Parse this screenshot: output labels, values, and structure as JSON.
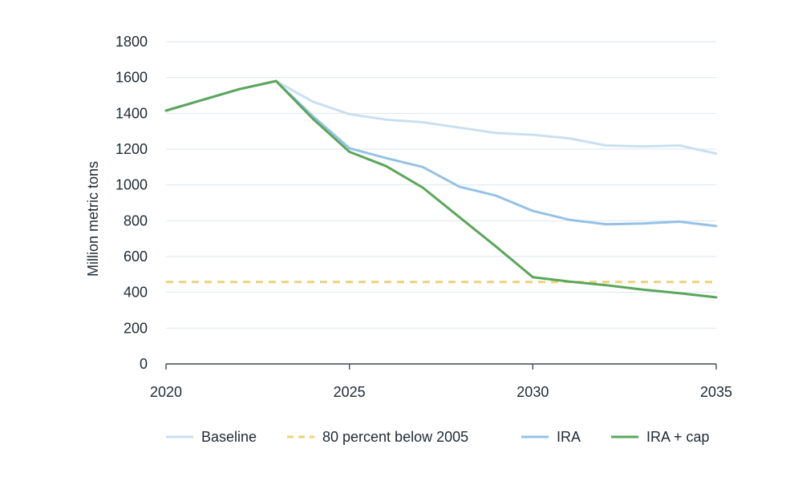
{
  "chart_data": {
    "type": "line",
    "title": "",
    "xlabel": "",
    "ylabel": "Million metric tons",
    "xlim": [
      2020,
      2035
    ],
    "ylim": [
      0,
      1800
    ],
    "x_ticks": [
      2020,
      2025,
      2030,
      2035
    ],
    "y_ticks": [
      0,
      200,
      400,
      600,
      800,
      1000,
      1200,
      1400,
      1600,
      1800
    ],
    "grid": "horizontal",
    "legend_position": "bottom",
    "series": [
      {
        "name": "Baseline",
        "color": "#c9e0ef",
        "dash": false,
        "x": [
          2020,
          2021,
          2022,
          2023,
          2024,
          2025,
          2026,
          2027,
          2028,
          2029,
          2030,
          2031,
          2032,
          2033,
          2034,
          2035
        ],
        "y": [
          1415,
          1475,
          1535,
          1580,
          1465,
          1395,
          1365,
          1350,
          1320,
          1290,
          1280,
          1260,
          1220,
          1215,
          1220,
          1175
        ]
      },
      {
        "name": "80 percent below 2005",
        "color": "#ecd27a",
        "dash": true,
        "x": [
          2020,
          2035
        ],
        "y": [
          458,
          458
        ]
      },
      {
        "name": "IRA",
        "color": "#94c2e6",
        "dash": false,
        "x": [
          2020,
          2021,
          2022,
          2023,
          2024,
          2025,
          2026,
          2027,
          2028,
          2029,
          2030,
          2031,
          2032,
          2033,
          2034,
          2035
        ],
        "y": [
          1415,
          1475,
          1535,
          1580,
          1385,
          1205,
          1150,
          1100,
          990,
          940,
          855,
          805,
          780,
          785,
          795,
          770
        ]
      },
      {
        "name": "IRA + cap",
        "color": "#5aa65a",
        "dash": false,
        "x": [
          2020,
          2021,
          2022,
          2023,
          2024,
          2025,
          2026,
          2027,
          2028,
          2029,
          2030,
          2031,
          2032,
          2033,
          2034,
          2035
        ],
        "y": [
          1415,
          1475,
          1535,
          1580,
          1370,
          1185,
          1105,
          985,
          820,
          655,
          485,
          460,
          440,
          415,
          395,
          372
        ]
      }
    ]
  }
}
